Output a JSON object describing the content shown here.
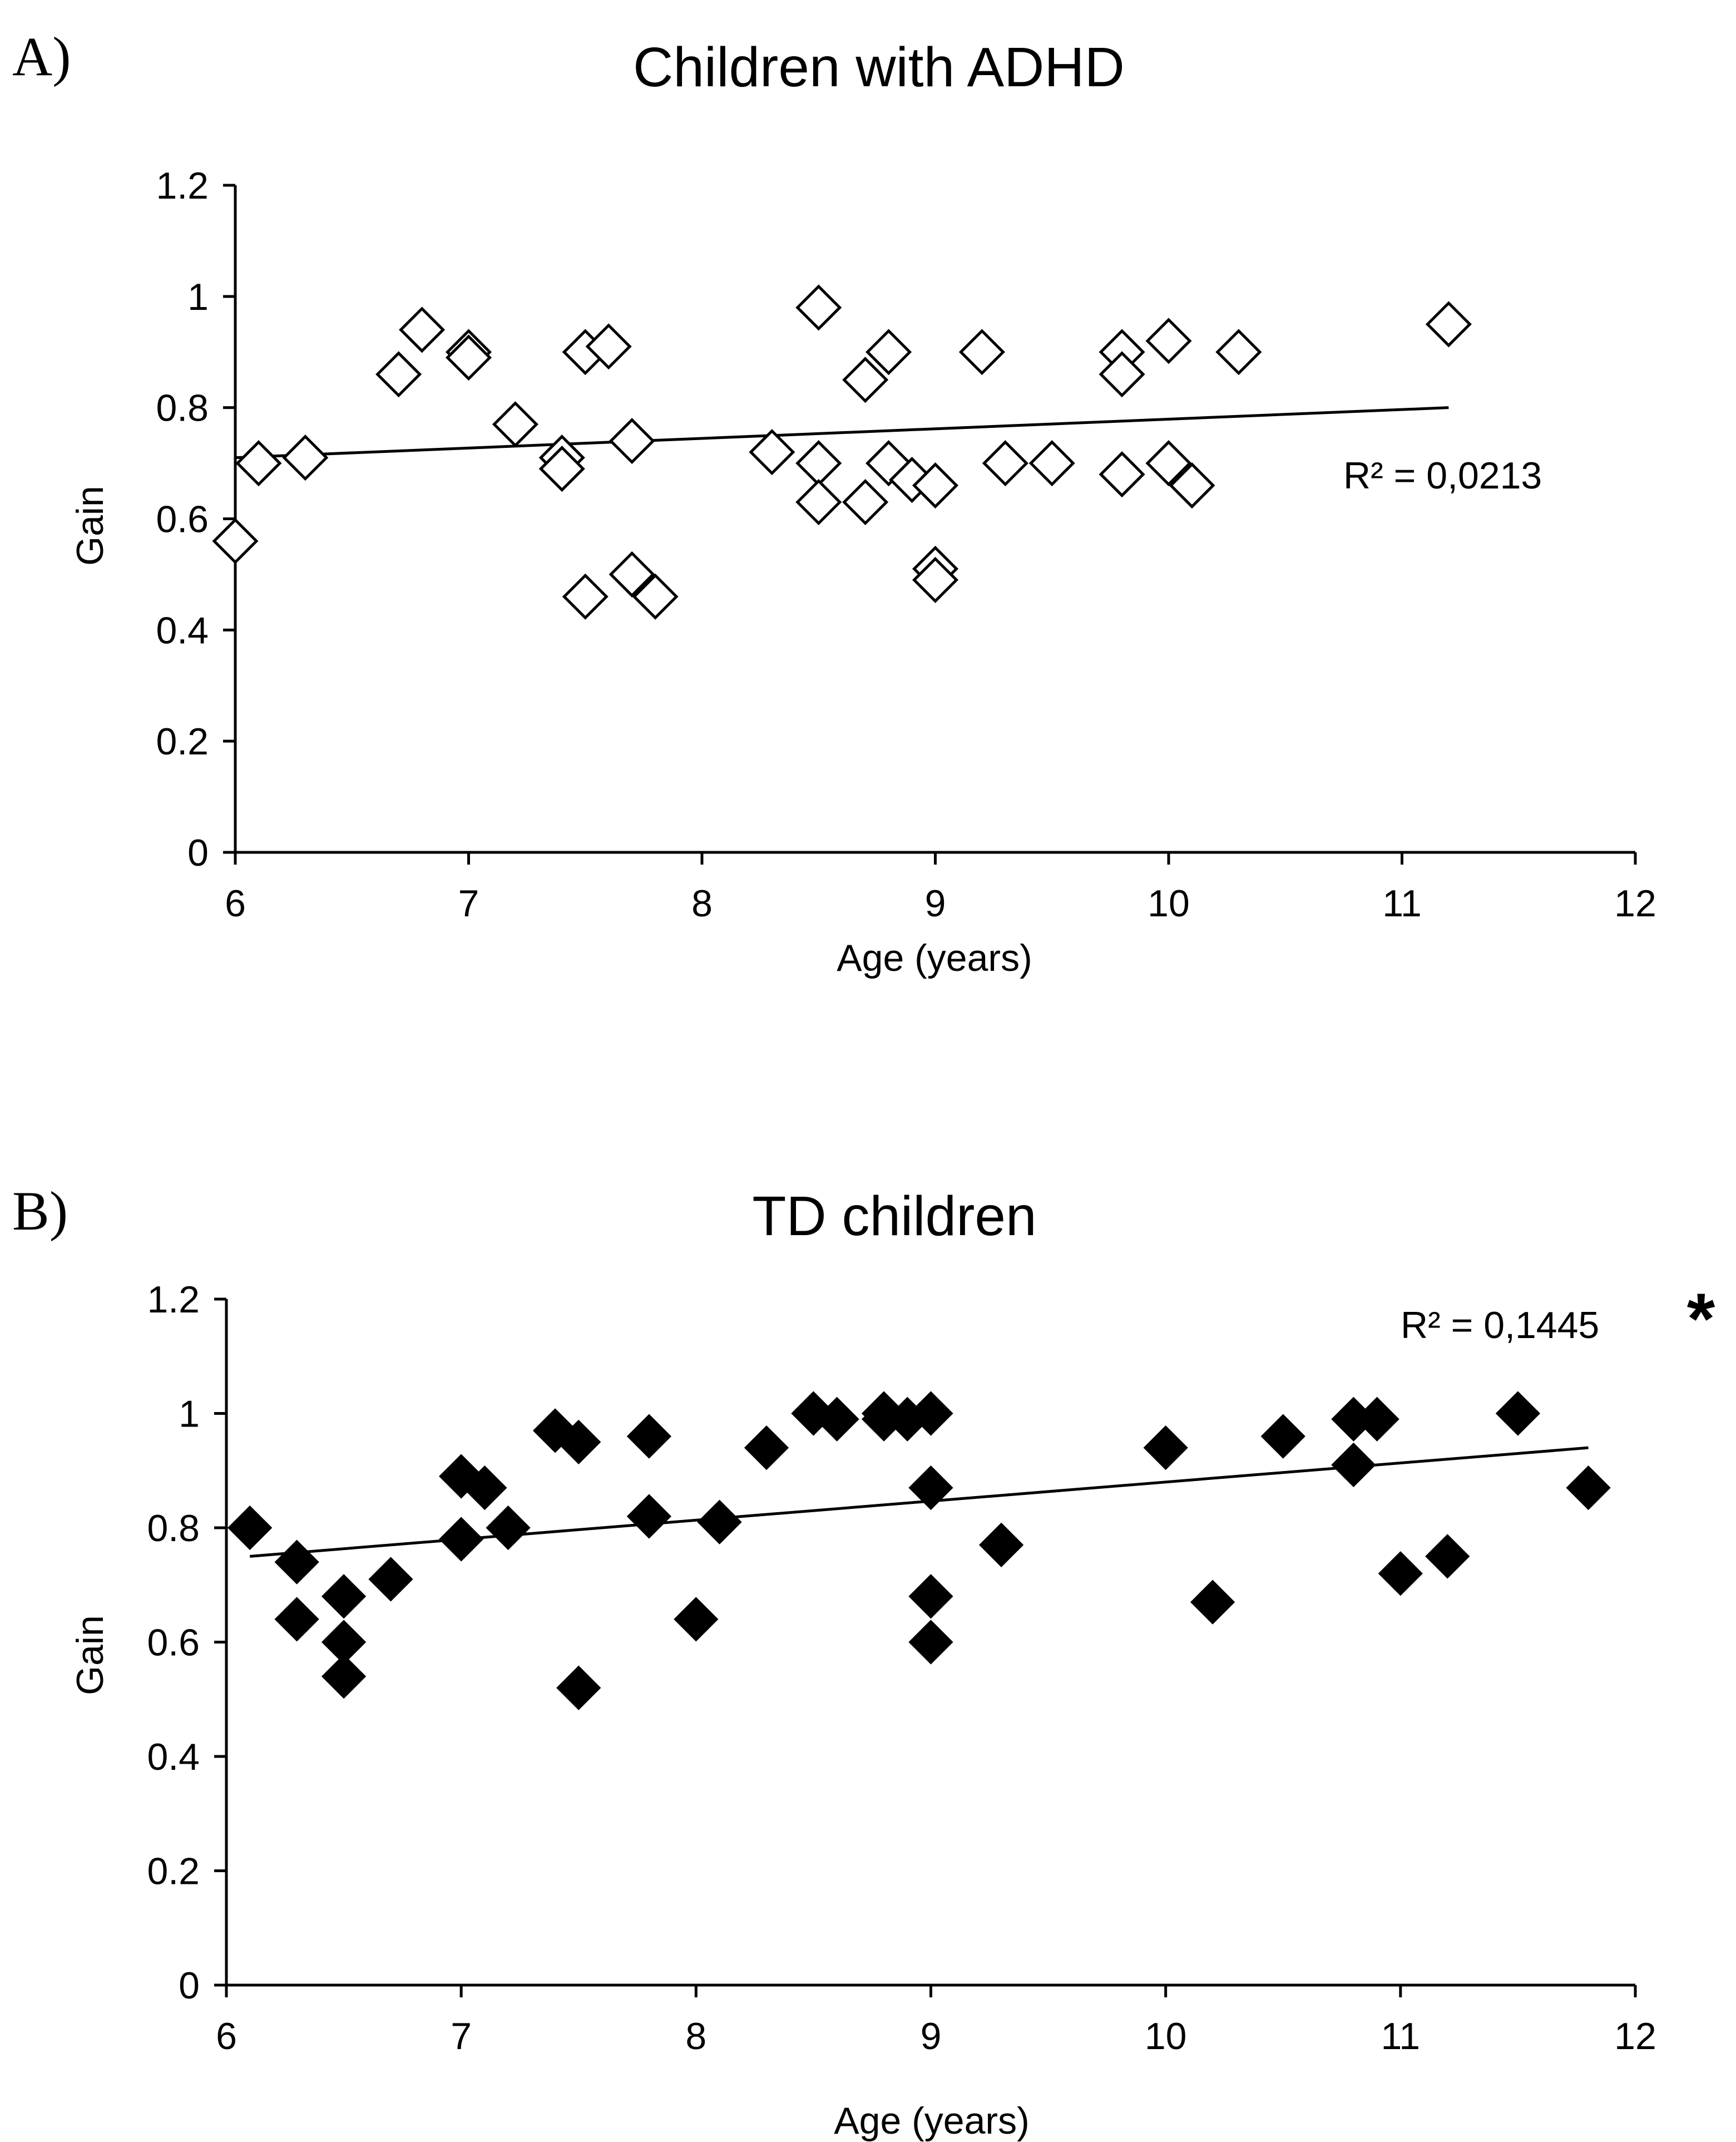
{
  "chart_data": [
    {
      "type": "scatter",
      "panel_label": "A)",
      "title": "Children with ADHD",
      "xlabel": "Age (years)",
      "ylabel": "Gain",
      "xlim": [
        6,
        12
      ],
      "ylim": [
        0,
        1.2
      ],
      "x_ticks": [
        "6",
        "7",
        "8",
        "9",
        "10",
        "11",
        "12"
      ],
      "y_ticks": [
        "0",
        "0.2",
        "0.4",
        "0.6",
        "0.8",
        "1",
        "1.2"
      ],
      "marker": "open-diamond",
      "annotation": "R² = 0,0213",
      "trendline": {
        "x": [
          6.0,
          11.2
        ],
        "y": [
          0.71,
          0.8
        ]
      },
      "points": [
        [
          6.0,
          0.56
        ],
        [
          6.1,
          0.7
        ],
        [
          6.3,
          0.71
        ],
        [
          6.7,
          0.86
        ],
        [
          6.8,
          0.94
        ],
        [
          7.0,
          0.9
        ],
        [
          7.0,
          0.89
        ],
        [
          7.2,
          0.77
        ],
        [
          7.4,
          0.71
        ],
        [
          7.4,
          0.69
        ],
        [
          7.5,
          0.9
        ],
        [
          7.5,
          0.46
        ],
        [
          7.6,
          0.91
        ],
        [
          7.7,
          0.74
        ],
        [
          7.7,
          0.5
        ],
        [
          7.8,
          0.46
        ],
        [
          8.3,
          0.72
        ],
        [
          8.5,
          0.98
        ],
        [
          8.5,
          0.7
        ],
        [
          8.5,
          0.63
        ],
        [
          8.7,
          0.85
        ],
        [
          8.7,
          0.63
        ],
        [
          8.8,
          0.9
        ],
        [
          8.8,
          0.7
        ],
        [
          8.9,
          0.67
        ],
        [
          9.0,
          0.66
        ],
        [
          9.0,
          0.51
        ],
        [
          9.0,
          0.49
        ],
        [
          9.2,
          0.9
        ],
        [
          9.3,
          0.7
        ],
        [
          9.5,
          0.7
        ],
        [
          9.8,
          0.9
        ],
        [
          9.8,
          0.86
        ],
        [
          9.8,
          0.68
        ],
        [
          10.0,
          0.92
        ],
        [
          10.0,
          0.7
        ],
        [
          10.1,
          0.66
        ],
        [
          10.3,
          0.9
        ],
        [
          11.2,
          0.95
        ]
      ]
    },
    {
      "type": "scatter",
      "panel_label": "B)",
      "title": "TD children",
      "xlabel": "Age (years)",
      "ylabel": "Gain",
      "xlim": [
        6,
        12
      ],
      "ylim": [
        0,
        1.2
      ],
      "x_ticks": [
        "6",
        "7",
        "8",
        "9",
        "10",
        "11",
        "12"
      ],
      "y_ticks": [
        "0",
        "0.2",
        "0.4",
        "0.6",
        "0.8",
        "1",
        "1.2"
      ],
      "marker": "filled-diamond",
      "annotation": "R² = 0,1445",
      "significance": "*",
      "trendline": {
        "x": [
          6.1,
          11.8
        ],
        "y": [
          0.75,
          0.94
        ]
      },
      "points": [
        [
          6.1,
          0.8
        ],
        [
          6.3,
          0.74
        ],
        [
          6.3,
          0.64
        ],
        [
          6.5,
          0.68
        ],
        [
          6.5,
          0.6
        ],
        [
          6.5,
          0.54
        ],
        [
          6.7,
          0.71
        ],
        [
          7.0,
          0.89
        ],
        [
          7.0,
          0.78
        ],
        [
          7.1,
          0.87
        ],
        [
          7.2,
          0.8
        ],
        [
          7.4,
          0.97
        ],
        [
          7.5,
          0.95
        ],
        [
          7.5,
          0.52
        ],
        [
          7.8,
          0.96
        ],
        [
          7.8,
          0.82
        ],
        [
          8.0,
          0.64
        ],
        [
          8.1,
          0.81
        ],
        [
          8.3,
          0.94
        ],
        [
          8.5,
          1.0
        ],
        [
          8.6,
          0.99
        ],
        [
          8.8,
          1.0
        ],
        [
          8.8,
          0.99
        ],
        [
          8.9,
          0.99
        ],
        [
          9.0,
          1.0
        ],
        [
          9.0,
          0.87
        ],
        [
          9.0,
          0.68
        ],
        [
          9.0,
          0.6
        ],
        [
          9.3,
          0.77
        ],
        [
          10.0,
          0.94
        ],
        [
          10.2,
          0.67
        ],
        [
          10.5,
          0.96
        ],
        [
          10.8,
          0.99
        ],
        [
          10.8,
          0.91
        ],
        [
          10.9,
          0.99
        ],
        [
          11.0,
          0.72
        ],
        [
          11.2,
          0.75
        ],
        [
          11.5,
          1.0
        ],
        [
          11.8,
          0.87
        ]
      ]
    }
  ]
}
